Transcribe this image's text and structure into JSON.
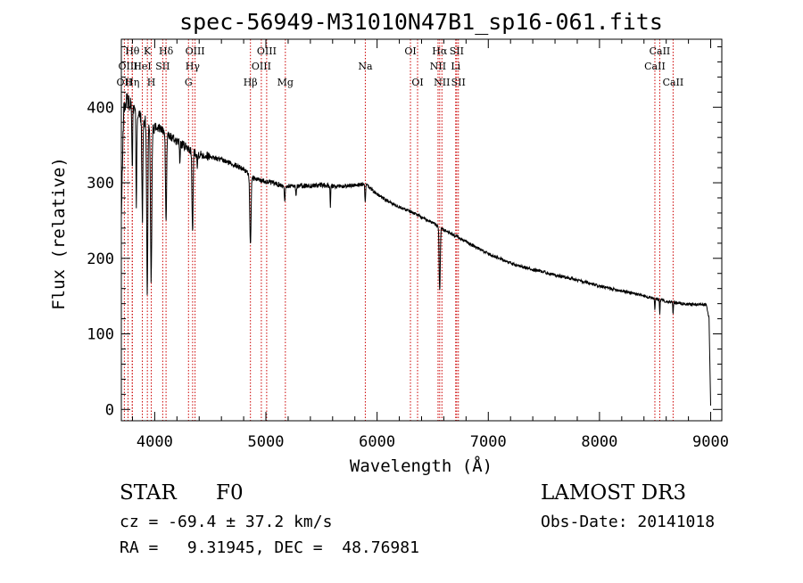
{
  "chart_data": {
    "type": "line",
    "title": "spec-56949-M31010N47B1_sp16-061.fits",
    "xlabel": "Wavelength (Å)",
    "ylabel": "Flux (relative)",
    "xlim": [
      3700,
      9100
    ],
    "ylim": [
      -15,
      490
    ],
    "x_ticks": [
      4000,
      5000,
      6000,
      7000,
      8000,
      9000
    ],
    "y_ticks": [
      0,
      100,
      200,
      300,
      400
    ],
    "grid": false,
    "continuum": [
      [
        3700,
        250
      ],
      [
        3720,
        395
      ],
      [
        3750,
        410
      ],
      [
        3780,
        405
      ],
      [
        3800,
        400
      ],
      [
        3850,
        390
      ],
      [
        3900,
        380
      ],
      [
        3950,
        375
      ],
      [
        4000,
        375
      ],
      [
        4050,
        372
      ],
      [
        4100,
        365
      ],
      [
        4150,
        360
      ],
      [
        4200,
        355
      ],
      [
        4300,
        345
      ],
      [
        4400,
        338
      ],
      [
        4500,
        335
      ],
      [
        4600,
        330
      ],
      [
        4700,
        325
      ],
      [
        4800,
        318
      ],
      [
        4900,
        305
      ],
      [
        5000,
        302
      ],
      [
        5100,
        298
      ],
      [
        5200,
        296
      ],
      [
        5300,
        296
      ],
      [
        5400,
        296
      ],
      [
        5500,
        297
      ],
      [
        5600,
        295
      ],
      [
        5700,
        295
      ],
      [
        5800,
        297
      ],
      [
        5900,
        298
      ],
      [
        6000,
        285
      ],
      [
        6100,
        275
      ],
      [
        6200,
        268
      ],
      [
        6300,
        262
      ],
      [
        6400,
        255
      ],
      [
        6500,
        247
      ],
      [
        6600,
        238
      ],
      [
        6700,
        230
      ],
      [
        6800,
        222
      ],
      [
        6900,
        214
      ],
      [
        7000,
        206
      ],
      [
        7100,
        200
      ],
      [
        7200,
        194
      ],
      [
        7300,
        189
      ],
      [
        7400,
        185
      ],
      [
        7500,
        182
      ],
      [
        7600,
        178
      ],
      [
        7700,
        175
      ],
      [
        7800,
        171
      ],
      [
        7900,
        167
      ],
      [
        8000,
        163
      ],
      [
        8100,
        160
      ],
      [
        8200,
        157
      ],
      [
        8300,
        154
      ],
      [
        8400,
        150
      ],
      [
        8500,
        147
      ],
      [
        8600,
        143
      ],
      [
        8700,
        141
      ],
      [
        8800,
        139
      ],
      [
        8900,
        139
      ],
      [
        8960,
        139
      ],
      [
        8985,
        120
      ],
      [
        9000,
        5
      ]
    ],
    "absorption": [
      {
        "x": 3798,
        "depth": 90,
        "width": 4
      },
      {
        "x": 3835,
        "depth": 120,
        "width": 5
      },
      {
        "x": 3889,
        "depth": 135,
        "width": 6
      },
      {
        "x": 3933,
        "depth": 225,
        "width": 7
      },
      {
        "x": 3968,
        "depth": 200,
        "width": 8
      },
      {
        "x": 4102,
        "depth": 115,
        "width": 7
      },
      {
        "x": 4226,
        "depth": 25,
        "width": 4
      },
      {
        "x": 4340,
        "depth": 110,
        "width": 7
      },
      {
        "x": 4383,
        "depth": 20,
        "width": 4
      },
      {
        "x": 4861,
        "depth": 95,
        "width": 8
      },
      {
        "x": 5170,
        "depth": 22,
        "width": 6
      },
      {
        "x": 5270,
        "depth": 12,
        "width": 5
      },
      {
        "x": 5580,
        "depth": 25,
        "width": 4
      },
      {
        "x": 5893,
        "depth": 25,
        "width": 5
      },
      {
        "x": 6563,
        "depth": 85,
        "width": 7
      },
      {
        "x": 8498,
        "depth": 14,
        "width": 4
      },
      {
        "x": 8542,
        "depth": 18,
        "width": 4
      },
      {
        "x": 8662,
        "depth": 16,
        "width": 4
      }
    ],
    "annotations": [
      {
        "x": 3727,
        "label": "OII",
        "row": 2
      },
      {
        "x": 3799,
        "label": "Hθ",
        "row": 0
      },
      {
        "x": 3760,
        "label": "OIII",
        "row": 1
      },
      {
        "x": 3798,
        "label": "Hη",
        "row": 2
      },
      {
        "x": 3889,
        "label": "HeI",
        "row": 1
      },
      {
        "x": 3934,
        "label": "K",
        "row": 0
      },
      {
        "x": 3969,
        "label": "H",
        "row": 2
      },
      {
        "x": 4072,
        "label": "SII",
        "row": 1
      },
      {
        "x": 4102,
        "label": "Hδ",
        "row": 0
      },
      {
        "x": 4304,
        "label": "G",
        "row": 2
      },
      {
        "x": 4341,
        "label": "Hγ",
        "row": 1
      },
      {
        "x": 4363,
        "label": "OIII",
        "row": 0
      },
      {
        "x": 4861,
        "label": "Hβ",
        "row": 2
      },
      {
        "x": 4959,
        "label": "OIII",
        "row": 1
      },
      {
        "x": 5007,
        "label": "OIII",
        "row": 0
      },
      {
        "x": 5175,
        "label": "Mg",
        "row": 2
      },
      {
        "x": 5894,
        "label": "Na",
        "row": 1
      },
      {
        "x": 6300,
        "label": "OI",
        "row": 0
      },
      {
        "x": 6364,
        "label": "OI",
        "row": 2
      },
      {
        "x": 6548,
        "label": "NII",
        "row": 1
      },
      {
        "x": 6563,
        "label": "Hα",
        "row": 0
      },
      {
        "x": 6583,
        "label": "NII",
        "row": 2
      },
      {
        "x": 6707,
        "label": "Li",
        "row": 1
      },
      {
        "x": 6716,
        "label": "SII",
        "row": 0
      },
      {
        "x": 6731,
        "label": "SII",
        "row": 2
      },
      {
        "x": 8498,
        "label": "CaII",
        "row": 1
      },
      {
        "x": 8542,
        "label": "CaII",
        "row": 0
      },
      {
        "x": 8662,
        "label": "CaII",
        "row": 2
      }
    ]
  },
  "info": {
    "object_class": "STAR",
    "subclass": "F0",
    "survey": "LAMOST DR3",
    "redshift_line": "cz = -69.4 ± 37.2 km/s",
    "obs_date_line": "Obs-Date: 20141018",
    "radec_line": "RA =   9.31945, DEC =  48.76981"
  }
}
